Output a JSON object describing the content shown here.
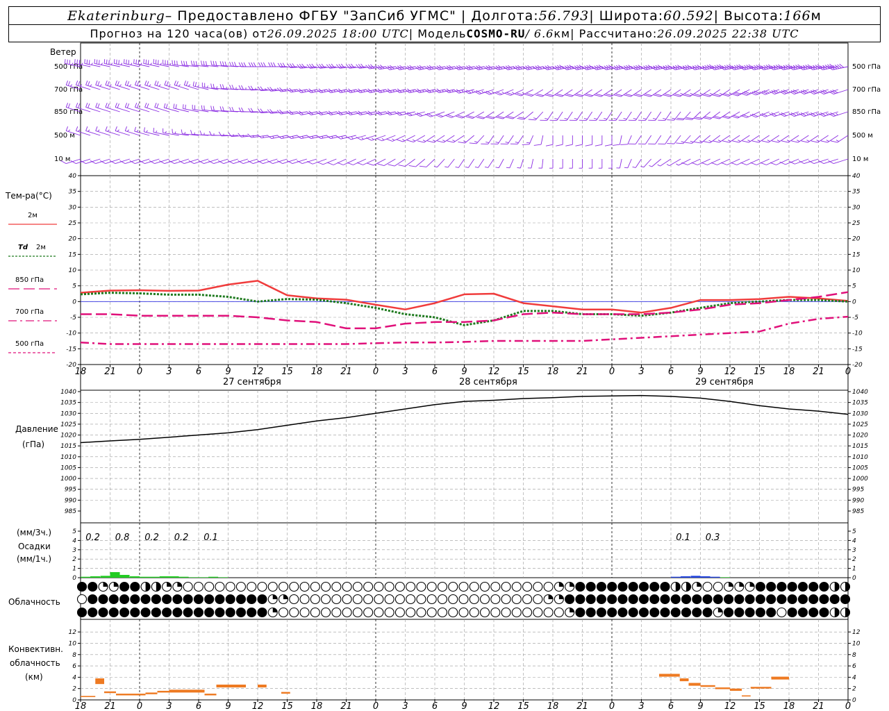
{
  "header": {
    "station": "Ekaterinburg",
    "provider": " – Предоставлено ФГБУ \"ЗапСиб УГМС\" | Долгота: ",
    "lon": "56.793",
    "lat_label": " | Широта: ",
    "lat": "60.592",
    "alt_label": " | Высота: ",
    "alt": "166",
    "alt_unit": "м",
    "fc_label": "Прогноз на 120 часа(ов) от ",
    "fc_time": "26.09.2025 18:00 UTC",
    "model_label": "  | Модель ",
    "model": "COSMO-RU",
    "res": " / 6.6",
    "res_unit": "км",
    "calc_label": " | Рассчитано: ",
    "calc_time": "26.09.2025 22:38 UTC"
  },
  "labels": {
    "wind": "Ветер",
    "levels": [
      "500 гПа",
      "700 гПа",
      "850 гПа",
      "500 м",
      "10  м"
    ],
    "temp_title": "Тем-ра(°С)",
    "legend": [
      {
        "text": "2м",
        "color": "#f03c3c",
        "dash": ""
      },
      {
        "text": "2м",
        "prefix": "Td",
        "color": "#1e7a1e",
        "dash": "3,2"
      },
      {
        "text": "850 гПа",
        "color": "#e0107a",
        "dash": "16,6"
      },
      {
        "text": "700 гПа",
        "color": "#e0107a",
        "dash": "12,5,3,5"
      },
      {
        "text": "500 гПа",
        "color": "#e0107a",
        "dash": "4,3"
      }
    ],
    "pressure": [
      "Давление",
      "(гПа)"
    ],
    "precip": [
      "(мм/3ч.)",
      "Осадки",
      "(мм/1ч.)"
    ],
    "cloud": "Облачность",
    "conv": [
      "Конвективн.",
      "облачность",
      "(км)"
    ],
    "days": [
      "27 сентября",
      "28 сентября",
      "29 сентября"
    ]
  },
  "chart_data": [
    {
      "type": "line",
      "name": "temperature",
      "x_tick_labels": [
        "18",
        "21",
        "0",
        "3",
        "6",
        "9",
        "12",
        "15",
        "18",
        "21",
        "0",
        "3",
        "6",
        "9",
        "12",
        "15",
        "18",
        "21",
        "0",
        "3",
        "6",
        "9",
        "12",
        "15",
        "18",
        "21",
        "0"
      ],
      "ylim": [
        -20,
        40
      ],
      "y_ticks": [
        -20,
        -15,
        -10,
        -5,
        0,
        5,
        10,
        15,
        20,
        25,
        30,
        35,
        40
      ],
      "grid": true,
      "series": [
        {
          "name": "2м",
          "values": [
            2.8,
            3.5,
            3.6,
            3.4,
            3.5,
            5.4,
            6.6,
            2,
            1,
            0.6,
            -1,
            -2.5,
            -0.5,
            2.3,
            2.5,
            -0.5,
            -1.5,
            -2.5,
            -2.5,
            -3.5,
            -2,
            0.5,
            0.5,
            0.8,
            1.5,
            1,
            0.2
          ]
        },
        {
          "name": "Td 2м",
          "values": [
            2.3,
            2.8,
            2.6,
            2.2,
            2.2,
            1.5,
            0,
            0.8,
            0.6,
            -0.5,
            -2,
            -4,
            -5,
            -7.5,
            -6,
            -3,
            -3,
            -4,
            -4,
            -4.5,
            -3.5,
            -2,
            -0.5,
            0,
            0.5,
            0.5,
            0
          ]
        },
        {
          "name": "850 гПа",
          "values": [
            -4,
            -4,
            -4.5,
            -4.5,
            -4.5,
            -4.5,
            -5,
            -6,
            -6.5,
            -8.5,
            -8.5,
            -7,
            -6.5,
            -6.5,
            -6,
            -4,
            -3.5,
            -4,
            -4,
            -4,
            -3.5,
            -2.5,
            -1,
            -0.5,
            0.5,
            1.5,
            3
          ]
        },
        {
          "name": "700 гПа",
          "values": [
            -4,
            -4,
            -4.5,
            -4.5,
            -4.5,
            -4.5,
            -5,
            -6,
            -6.5,
            -8.5,
            -8.5,
            -7,
            -6.5,
            -6.5,
            -6,
            -4,
            -3.5,
            -4,
            -4,
            -4,
            -3.5,
            -2.5,
            -1,
            -0.5,
            0.5,
            1.5,
            3
          ]
        },
        {
          "name": "500 гПа",
          "values": [
            -13,
            -13.5,
            -13.5,
            -13.5,
            -13.5,
            -13.5,
            -13.5,
            -13.5,
            -13.5,
            -13.5,
            -13.2,
            -13,
            -13,
            -12.8,
            -12.5,
            -12.5,
            -12.5,
            -12.5,
            -12,
            -11.5,
            -11,
            -10.5,
            -10,
            -9.5,
            -7,
            -5.5,
            -4.8
          ]
        }
      ]
    },
    {
      "type": "line",
      "name": "pressure",
      "x_tick_labels": [
        "18",
        "21",
        "0",
        "3",
        "6",
        "9",
        "12",
        "15",
        "18",
        "21",
        "0",
        "3",
        "6",
        "9",
        "12",
        "15",
        "18",
        "21",
        "0",
        "3",
        "6",
        "9",
        "12",
        "15",
        "18",
        "21",
        "0"
      ],
      "ylim": [
        985,
        1040
      ],
      "y_ticks": [
        985,
        990,
        995,
        1000,
        1005,
        1010,
        1015,
        1020,
        1025,
        1030,
        1035,
        1040
      ],
      "grid": true,
      "series": [
        {
          "values": [
            1016.5,
            1017.3,
            1018,
            1019,
            1020,
            1021,
            1022.5,
            1024.5,
            1026.5,
            1028,
            1030,
            1032,
            1034,
            1035.5,
            1036,
            1036.8,
            1037.2,
            1037.8,
            1038,
            1038.2,
            1037.8,
            1037,
            1035.5,
            1033.5,
            1032,
            1031,
            1029.5
          ]
        }
      ]
    },
    {
      "type": "bar",
      "name": "precipitation",
      "ylim": [
        0,
        5
      ],
      "y_ticks": [
        0,
        1,
        2,
        3,
        4,
        5
      ],
      "grid": true,
      "labels_3h": [
        {
          "x_index": 0.5,
          "text": "0.2"
        },
        {
          "x_index": 1.5,
          "text": "0.8"
        },
        {
          "x_index": 2.5,
          "text": "0.2"
        },
        {
          "x_index": 3.5,
          "text": "0.2"
        },
        {
          "x_index": 4.5,
          "text": "0.1"
        },
        {
          "x_index": 20.5,
          "text": "0.1"
        },
        {
          "x_index": 21.5,
          "text": "0.3"
        }
      ],
      "bars_1h": [
        {
          "h": 0.33,
          "v": 0.1,
          "c": "#22cc22"
        },
        {
          "h": 0.66,
          "v": 0.15,
          "c": "#22cc22"
        },
        {
          "h": 1,
          "v": 0.2,
          "c": "#22cc22"
        },
        {
          "h": 1.33,
          "v": 0.6,
          "c": "#22cc22"
        },
        {
          "h": 1.66,
          "v": 0.3,
          "c": "#22cc22"
        },
        {
          "h": 2,
          "v": 0.15,
          "c": "#22cc22"
        },
        {
          "h": 2.33,
          "v": 0.1,
          "c": "#22cc22"
        },
        {
          "h": 2.66,
          "v": 0.1,
          "c": "#22cc22"
        },
        {
          "h": 3,
          "v": 0.15,
          "c": "#22cc22"
        },
        {
          "h": 3.33,
          "v": 0.15,
          "c": "#22cc22"
        },
        {
          "h": 3.66,
          "v": 0.1,
          "c": "#22cc22"
        },
        {
          "h": 4,
          "v": 0.05,
          "c": "#22cc22"
        },
        {
          "h": 4.33,
          "v": 0.05,
          "c": "#22cc22"
        },
        {
          "h": 4.66,
          "v": 0.1,
          "c": "#22cc22"
        },
        {
          "h": 5,
          "v": 0.05,
          "c": "#22cc22"
        },
        {
          "h": 20.33,
          "v": 0.1,
          "c": "#2244dd"
        },
        {
          "h": 20.66,
          "v": 0.15,
          "c": "#2244dd"
        },
        {
          "h": 21,
          "v": 0.2,
          "c": "#2244dd"
        },
        {
          "h": 21.33,
          "v": 0.15,
          "c": "#2244dd"
        },
        {
          "h": 21.66,
          "v": 0.1,
          "c": "#2244dd"
        },
        {
          "h": 22,
          "v": 0.05,
          "c": "#22cc22"
        }
      ]
    },
    {
      "type": "heatmap",
      "name": "cloudiness",
      "rows": [
        "3311332211000000000000000000000000000000000001133333333322100111333333322",
        "0333333333333333331100000000000000000000000011333333333333333333333333333",
        "3333333333333333331000000000000000000000000000133333333333331333330333322"
      ]
    },
    {
      "type": "bar",
      "name": "convective_cloud",
      "ylim": [
        0,
        13
      ],
      "y_ticks": [
        0,
        2,
        4,
        6,
        8,
        10,
        12
      ],
      "grid": true,
      "segments": [
        {
          "x0": 0,
          "x1": 0.5,
          "y0": 0.5,
          "y1": 0.7
        },
        {
          "x0": 0.5,
          "x1": 0.8,
          "y0": 2.8,
          "y1": 3.8
        },
        {
          "x0": 0.8,
          "x1": 1.2,
          "y0": 1.2,
          "y1": 1.5
        },
        {
          "x0": 1.2,
          "x1": 2.2,
          "y0": 0.8,
          "y1": 1.1
        },
        {
          "x0": 2.2,
          "x1": 2.6,
          "y0": 1,
          "y1": 1.3
        },
        {
          "x0": 2.6,
          "x1": 3.0,
          "y0": 1.3,
          "y1": 1.6
        },
        {
          "x0": 3.0,
          "x1": 4.2,
          "y0": 1.3,
          "y1": 1.8
        },
        {
          "x0": 4.2,
          "x1": 4.6,
          "y0": 0.8,
          "y1": 1.1
        },
        {
          "x0": 4.6,
          "x1": 5.6,
          "y0": 2.2,
          "y1": 2.7
        },
        {
          "x0": 6.0,
          "x1": 6.3,
          "y0": 2.2,
          "y1": 2.7
        },
        {
          "x0": 6.8,
          "x1": 7.1,
          "y0": 1.1,
          "y1": 1.4
        },
        {
          "x0": 19.6,
          "x1": 20.3,
          "y0": 4.1,
          "y1": 4.6
        },
        {
          "x0": 20.3,
          "x1": 20.6,
          "y0": 3.3,
          "y1": 3.8
        },
        {
          "x0": 20.6,
          "x1": 21.0,
          "y0": 2.5,
          "y1": 3.0
        },
        {
          "x0": 21.0,
          "x1": 21.5,
          "y0": 2.3,
          "y1": 2.6
        },
        {
          "x0": 21.5,
          "x1": 22.0,
          "y0": 1.9,
          "y1": 2.2
        },
        {
          "x0": 22.0,
          "x1": 22.4,
          "y0": 1.6,
          "y1": 2.0
        },
        {
          "x0": 22.4,
          "x1": 22.7,
          "y0": 0.6,
          "y1": 0.8
        },
        {
          "x0": 22.7,
          "x1": 23.4,
          "y0": 2.0,
          "y1": 2.3
        },
        {
          "x0": 23.4,
          "x1": 24.0,
          "y0": 3.6,
          "y1": 4.1
        }
      ]
    },
    {
      "type": "scatter",
      "name": "wind",
      "rows": [
        "500 гПа",
        "700 гПа",
        "850 гПа",
        "500 м",
        "10  м"
      ],
      "dir_deg": [
        [
          290,
          290,
          290,
          290,
          280,
          280,
          270,
          270,
          260,
          260,
          260,
          250,
          250,
          250,
          250,
          250,
          250,
          250,
          250,
          250,
          250,
          250,
          250,
          250,
          250,
          250,
          250
        ],
        [
          300,
          300,
          300,
          300,
          300,
          280,
          270,
          260,
          250,
          250,
          250,
          250,
          250,
          250,
          240,
          230,
          220,
          220,
          220,
          220,
          220,
          220,
          220,
          230,
          240,
          240,
          240
        ],
        [
          300,
          300,
          300,
          300,
          290,
          280,
          270,
          260,
          250,
          250,
          250,
          250,
          240,
          230,
          220,
          220,
          200,
          200,
          200,
          200,
          200,
          210,
          220,
          230,
          240,
          240,
          240
        ],
        [
          300,
          300,
          300,
          290,
          280,
          270,
          260,
          250,
          250,
          250,
          240,
          230,
          220,
          220,
          200,
          200,
          180,
          180,
          180,
          200,
          200,
          210,
          220,
          220,
          220,
          220,
          220
        ],
        [
          240,
          240,
          240,
          240,
          240,
          240,
          240,
          240,
          240,
          230,
          230,
          220,
          210,
          200,
          200,
          190,
          180,
          180,
          180,
          200,
          220,
          230,
          230,
          230,
          230,
          240,
          240
        ]
      ],
      "speed_kt": [
        [
          35,
          35,
          35,
          35,
          30,
          30,
          30,
          30,
          30,
          30,
          30,
          30,
          30,
          30,
          30,
          35,
          35,
          40,
          40,
          40,
          45,
          45,
          50,
          50,
          55,
          55,
          60
        ],
        [
          25,
          25,
          25,
          25,
          25,
          25,
          25,
          25,
          25,
          25,
          25,
          25,
          25,
          25,
          25,
          25,
          20,
          20,
          20,
          20,
          20,
          25,
          25,
          30,
          30,
          30,
          30
        ],
        [
          20,
          20,
          20,
          20,
          20,
          20,
          20,
          20,
          20,
          20,
          20,
          20,
          20,
          20,
          20,
          20,
          15,
          15,
          15,
          15,
          15,
          20,
          20,
          20,
          20,
          25,
          25
        ],
        [
          15,
          15,
          15,
          15,
          15,
          15,
          15,
          15,
          15,
          15,
          15,
          15,
          15,
          15,
          15,
          15,
          10,
          10,
          10,
          10,
          10,
          15,
          15,
          15,
          15,
          15,
          15
        ],
        [
          8,
          8,
          8,
          8,
          8,
          8,
          8,
          8,
          8,
          8,
          8,
          8,
          8,
          5,
          5,
          5,
          5,
          5,
          5,
          5,
          5,
          8,
          8,
          8,
          8,
          8,
          8
        ]
      ]
    }
  ]
}
